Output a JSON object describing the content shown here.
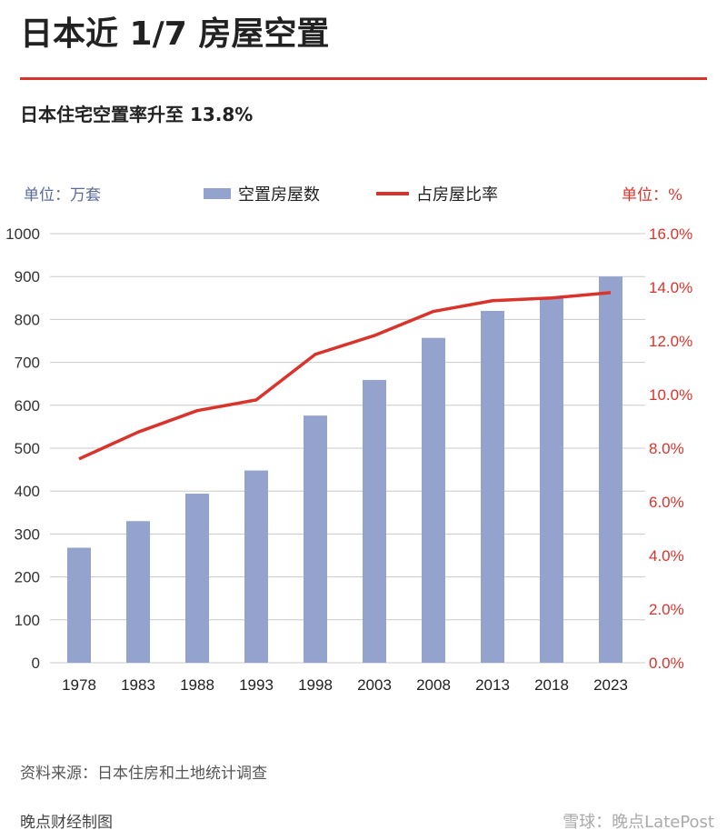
{
  "header": {
    "title": "日本近 1/7 房屋空置",
    "subtitle": "日本住宅空置率升至 13.8%"
  },
  "footer": {
    "source": "资料来源：日本住房和土地统计调查",
    "credit": "晚点财经制图",
    "watermark": "雪球：晚点LatePost"
  },
  "colors": {
    "bar": "#94a3cd",
    "line": "#d9342b",
    "accent": "#d9342b"
  },
  "chart_data": {
    "type": "bar+line",
    "categories": [
      "1978",
      "1983",
      "1988",
      "1993",
      "1998",
      "2003",
      "2008",
      "2013",
      "2018",
      "2023"
    ],
    "left_unit": "单位：万套",
    "right_unit": "单位：%",
    "series": [
      {
        "name": "空置房屋数",
        "type": "bar",
        "axis": "left",
        "values": [
          268,
          330,
          394,
          448,
          576,
          659,
          757,
          820,
          849,
          900
        ]
      },
      {
        "name": "占房屋比率",
        "type": "line",
        "axis": "right",
        "values": [
          7.6,
          8.6,
          9.4,
          9.8,
          11.5,
          12.2,
          13.1,
          13.5,
          13.6,
          13.8
        ]
      }
    ],
    "ylim_left": [
      0,
      1000
    ],
    "yticks_left": [
      "0",
      "100",
      "200",
      "300",
      "400",
      "500",
      "600",
      "700",
      "800",
      "900",
      "1000"
    ],
    "ylim_right": [
      0,
      16
    ],
    "yticks_right": [
      "0.0%",
      "2.0%",
      "4.0%",
      "6.0%",
      "8.0%",
      "10.0%",
      "12.0%",
      "14.0%",
      "16.0%"
    ],
    "grid": true,
    "legend": "top-center"
  }
}
